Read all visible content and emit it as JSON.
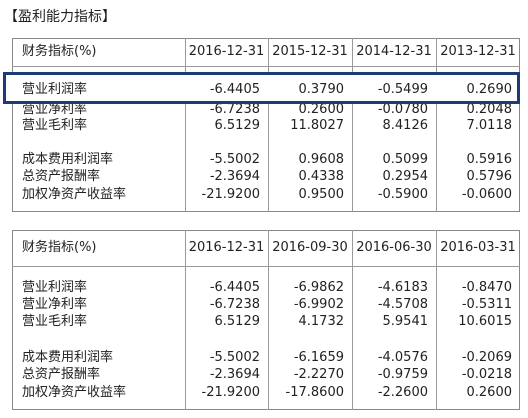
{
  "title": "【盈利能力指标】",
  "tables": [
    {
      "header": [
        "财务指标(%)",
        "2016-12-31",
        "2015-12-31",
        "2014-12-31",
        "2013-12-31"
      ],
      "rows": [
        [
          "营业利润率",
          "-6.4405",
          "0.3790",
          "-0.5499",
          "0.2690"
        ],
        [
          "营业净利率",
          "-6.7238",
          "0.2600",
          "-0.0780",
          "0.2048"
        ],
        [
          "营业毛利率",
          "6.5129",
          "11.8027",
          "8.4126",
          "7.0118"
        ],
        [
          "成本费用利润率",
          "-5.5002",
          "0.9608",
          "0.5099",
          "0.5916"
        ],
        [
          "总资产报酬率",
          "-2.3694",
          "0.4338",
          "0.2954",
          "0.5796"
        ],
        [
          "加权净资产收益率",
          "-21.9200",
          "0.9500",
          "-0.5900",
          "-0.0600"
        ]
      ]
    },
    {
      "header": [
        "财务指标(%)",
        "2016-12-31",
        "2016-09-30",
        "2016-06-30",
        "2016-03-31"
      ],
      "rows": [
        [
          "营业利润率",
          "-6.4405",
          "-6.9862",
          "-4.6183",
          "-0.8470"
        ],
        [
          "营业净利率",
          "-6.7238",
          "-6.9902",
          "-4.5708",
          "-0.5311"
        ],
        [
          "营业毛利率",
          "6.5129",
          "4.1732",
          "5.9541",
          "10.6015"
        ],
        [
          "成本费用利润率",
          "-5.5002",
          "-6.1659",
          "-4.0576",
          "-0.2069"
        ],
        [
          "总资产报酬率",
          "-2.3694",
          "-2.2270",
          "-0.9759",
          "-0.0218"
        ],
        [
          "加权净资产收益率",
          "-21.9200",
          "-17.8600",
          "-2.2600",
          "0.2600"
        ]
      ]
    }
  ]
}
